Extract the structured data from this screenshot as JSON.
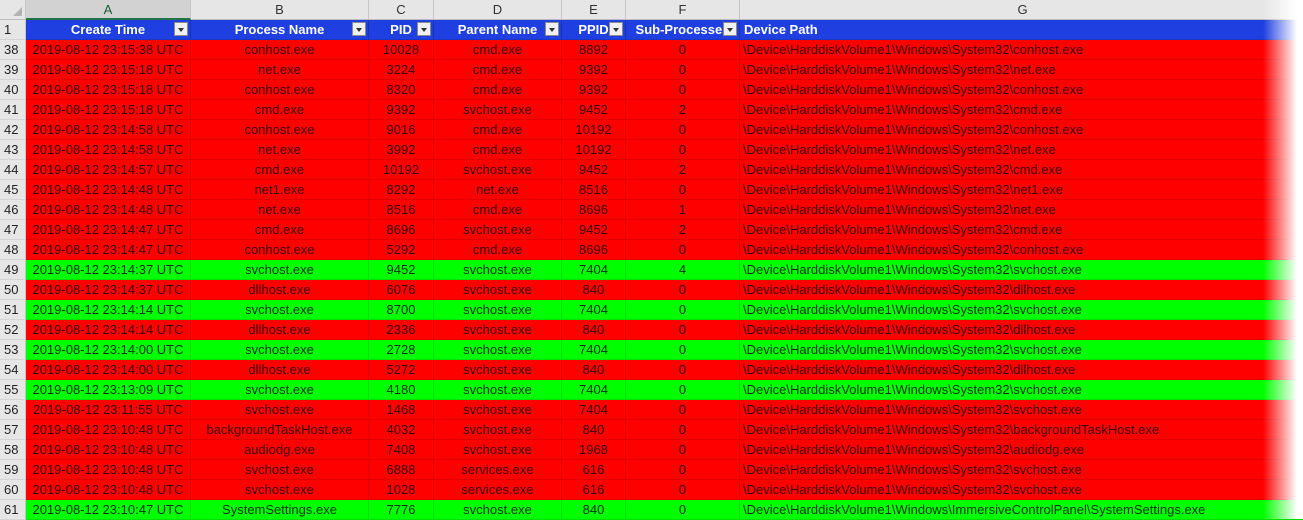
{
  "columns": [
    "A",
    "B",
    "C",
    "D",
    "E",
    "F",
    "G"
  ],
  "selected_column": "A",
  "header_row_number": "1",
  "headers": [
    "Create Time",
    "Process Name",
    "PID",
    "Parent Name",
    "PPID",
    "Sub-Processes",
    "Device Path"
  ],
  "colors": {
    "flag_red": "#ff0000",
    "flag_green": "#00ff00",
    "header_blue": "#1f3fe0"
  },
  "rows": [
    {
      "n": "38",
      "time": "2019-08-12 23:15:38 UTC",
      "name": "conhost.exe",
      "pid": "10028",
      "parent": "cmd.exe",
      "ppid": "8892",
      "sub": "0",
      "path": "\\Device\\HarddiskVolume1\\Windows\\System32\\conhost.exe",
      "status": "red"
    },
    {
      "n": "39",
      "time": "2019-08-12 23:15:18 UTC",
      "name": "net.exe",
      "pid": "3224",
      "parent": "cmd.exe",
      "ppid": "9392",
      "sub": "0",
      "path": "\\Device\\HarddiskVolume1\\Windows\\System32\\net.exe",
      "status": "red"
    },
    {
      "n": "40",
      "time": "2019-08-12 23:15:18 UTC",
      "name": "conhost.exe",
      "pid": "8320",
      "parent": "cmd.exe",
      "ppid": "9392",
      "sub": "0",
      "path": "\\Device\\HarddiskVolume1\\Windows\\System32\\conhost.exe",
      "status": "red"
    },
    {
      "n": "41",
      "time": "2019-08-12 23:15:18 UTC",
      "name": "cmd.exe",
      "pid": "9392",
      "parent": "svchost.exe",
      "ppid": "9452",
      "sub": "2",
      "path": "\\Device\\HarddiskVolume1\\Windows\\System32\\cmd.exe",
      "status": "red"
    },
    {
      "n": "42",
      "time": "2019-08-12 23:14:58 UTC",
      "name": "conhost.exe",
      "pid": "9016",
      "parent": "cmd.exe",
      "ppid": "10192",
      "sub": "0",
      "path": "\\Device\\HarddiskVolume1\\Windows\\System32\\conhost.exe",
      "status": "red"
    },
    {
      "n": "43",
      "time": "2019-08-12 23:14:58 UTC",
      "name": "net.exe",
      "pid": "3992",
      "parent": "cmd.exe",
      "ppid": "10192",
      "sub": "0",
      "path": "\\Device\\HarddiskVolume1\\Windows\\System32\\net.exe",
      "status": "red"
    },
    {
      "n": "44",
      "time": "2019-08-12 23:14:57 UTC",
      "name": "cmd.exe",
      "pid": "10192",
      "parent": "svchost.exe",
      "ppid": "9452",
      "sub": "2",
      "path": "\\Device\\HarddiskVolume1\\Windows\\System32\\cmd.exe",
      "status": "red"
    },
    {
      "n": "45",
      "time": "2019-08-12 23:14:48 UTC",
      "name": "net1.exe",
      "pid": "8292",
      "parent": "net.exe",
      "ppid": "8516",
      "sub": "0",
      "path": "\\Device\\HarddiskVolume1\\Windows\\System32\\net1.exe",
      "status": "red"
    },
    {
      "n": "46",
      "time": "2019-08-12 23:14:48 UTC",
      "name": "net.exe",
      "pid": "8516",
      "parent": "cmd.exe",
      "ppid": "8696",
      "sub": "1",
      "path": "\\Device\\HarddiskVolume1\\Windows\\System32\\net.exe",
      "status": "red"
    },
    {
      "n": "47",
      "time": "2019-08-12 23:14:47 UTC",
      "name": "cmd.exe",
      "pid": "8696",
      "parent": "svchost.exe",
      "ppid": "9452",
      "sub": "2",
      "path": "\\Device\\HarddiskVolume1\\Windows\\System32\\cmd.exe",
      "status": "red"
    },
    {
      "n": "48",
      "time": "2019-08-12 23:14:47 UTC",
      "name": "conhost.exe",
      "pid": "5292",
      "parent": "cmd.exe",
      "ppid": "8696",
      "sub": "0",
      "path": "\\Device\\HarddiskVolume1\\Windows\\System32\\conhost.exe",
      "status": "red"
    },
    {
      "n": "49",
      "time": "2019-08-12 23:14:37 UTC",
      "name": "svchost.exe",
      "pid": "9452",
      "parent": "svchost.exe",
      "ppid": "7404",
      "sub": "4",
      "path": "\\Device\\HarddiskVolume1\\Windows\\System32\\svchost.exe",
      "status": "green"
    },
    {
      "n": "50",
      "time": "2019-08-12 23:14:37 UTC",
      "name": "dllhost.exe",
      "pid": "6076",
      "parent": "svchost.exe",
      "ppid": "840",
      "sub": "0",
      "path": "\\Device\\HarddiskVolume1\\Windows\\System32\\dllhost.exe",
      "status": "red"
    },
    {
      "n": "51",
      "time": "2019-08-12 23:14:14 UTC",
      "name": "svchost.exe",
      "pid": "8700",
      "parent": "svchost.exe",
      "ppid": "7404",
      "sub": "0",
      "path": "\\Device\\HarddiskVolume1\\Windows\\System32\\svchost.exe",
      "status": "green"
    },
    {
      "n": "52",
      "time": "2019-08-12 23:14:14 UTC",
      "name": "dllhost.exe",
      "pid": "2336",
      "parent": "svchost.exe",
      "ppid": "840",
      "sub": "0",
      "path": "\\Device\\HarddiskVolume1\\Windows\\System32\\dllhost.exe",
      "status": "red"
    },
    {
      "n": "53",
      "time": "2019-08-12 23:14:00 UTC",
      "name": "svchost.exe",
      "pid": "2728",
      "parent": "svchost.exe",
      "ppid": "7404",
      "sub": "0",
      "path": "\\Device\\HarddiskVolume1\\Windows\\System32\\svchost.exe",
      "status": "green"
    },
    {
      "n": "54",
      "time": "2019-08-12 23:14:00 UTC",
      "name": "dllhost.exe",
      "pid": "5272",
      "parent": "svchost.exe",
      "ppid": "840",
      "sub": "0",
      "path": "\\Device\\HarddiskVolume1\\Windows\\System32\\dllhost.exe",
      "status": "red"
    },
    {
      "n": "55",
      "time": "2019-08-12 23:13:09 UTC",
      "name": "svchost.exe",
      "pid": "4180",
      "parent": "svchost.exe",
      "ppid": "7404",
      "sub": "0",
      "path": "\\Device\\HarddiskVolume1\\Windows\\System32\\svchost.exe",
      "status": "green"
    },
    {
      "n": "56",
      "time": "2019-08-12 23:11:55 UTC",
      "name": "svchost.exe",
      "pid": "1468",
      "parent": "svchost.exe",
      "ppid": "7404",
      "sub": "0",
      "path": "\\Device\\HarddiskVolume1\\Windows\\System32\\svchost.exe",
      "status": "red"
    },
    {
      "n": "57",
      "time": "2019-08-12 23:10:48 UTC",
      "name": "backgroundTaskHost.exe",
      "pid": "4032",
      "parent": "svchost.exe",
      "ppid": "840",
      "sub": "0",
      "path": "\\Device\\HarddiskVolume1\\Windows\\System32\\backgroundTaskHost.exe",
      "status": "red"
    },
    {
      "n": "58",
      "time": "2019-08-12 23:10:48 UTC",
      "name": "audiodg.exe",
      "pid": "7408",
      "parent": "svchost.exe",
      "ppid": "1968",
      "sub": "0",
      "path": "\\Device\\HarddiskVolume1\\Windows\\System32\\audiodg.exe",
      "status": "red"
    },
    {
      "n": "59",
      "time": "2019-08-12 23:10:48 UTC",
      "name": "svchost.exe",
      "pid": "6888",
      "parent": "services.exe",
      "ppid": "616",
      "sub": "0",
      "path": "\\Device\\HarddiskVolume1\\Windows\\System32\\svchost.exe",
      "status": "red"
    },
    {
      "n": "60",
      "time": "2019-08-12 23:10:48 UTC",
      "name": "svchost.exe",
      "pid": "1028",
      "parent": "services.exe",
      "ppid": "616",
      "sub": "0",
      "path": "\\Device\\HarddiskVolume1\\Windows\\System32\\svchost.exe",
      "status": "red"
    },
    {
      "n": "61",
      "time": "2019-08-12 23:10:47 UTC",
      "name": "SystemSettings.exe",
      "pid": "7776",
      "parent": "svchost.exe",
      "ppid": "840",
      "sub": "0",
      "path": "\\Device\\HarddiskVolume1\\Windows\\ImmersiveControlPanel\\SystemSettings.exe",
      "status": "green"
    }
  ]
}
